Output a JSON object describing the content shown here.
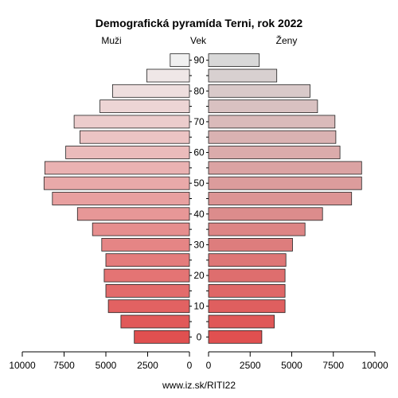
{
  "chart_data": {
    "type": "bar",
    "title": "Demografická pyramída Terni, rok 2022",
    "left_label": "Muži",
    "center_label": "Vek",
    "right_label": "Ženy",
    "footer": "www.iz.sk/RITI22",
    "age_groups": [
      "0-4",
      "5-9",
      "10-14",
      "15-19",
      "20-24",
      "25-29",
      "30-34",
      "35-39",
      "40-44",
      "45-49",
      "50-54",
      "55-59",
      "60-64",
      "65-69",
      "70-74",
      "75-79",
      "80-84",
      "85-89",
      "90+"
    ],
    "age_tick_labels": [
      "0",
      "10",
      "20",
      "30",
      "40",
      "50",
      "60",
      "70",
      "80",
      "90"
    ],
    "series": [
      {
        "name": "Muži",
        "values": [
          3300,
          4100,
          4850,
          5000,
          5100,
          5000,
          5250,
          5800,
          6700,
          8200,
          8700,
          8650,
          7400,
          6550,
          6900,
          5350,
          4600,
          2550,
          1150
        ]
      },
      {
        "name": "Ženy",
        "values": [
          3200,
          3950,
          4600,
          4600,
          4600,
          4650,
          5050,
          5800,
          6850,
          8600,
          9200,
          9200,
          7900,
          7650,
          7600,
          6550,
          6100,
          4100,
          3050
        ]
      }
    ],
    "male_xlim": [
      10000,
      0
    ],
    "female_xlim": [
      0,
      10000
    ],
    "male_tick_labels": [
      "10000",
      "7500",
      "5000",
      "2500",
      "0"
    ],
    "female_tick_labels": [
      "0",
      "2500",
      "5000",
      "7500",
      "10000"
    ],
    "colors": {
      "young": "#e05050",
      "old": "#f0f0f0",
      "female_old": "#d8d8d8",
      "stroke": "#222222"
    }
  }
}
